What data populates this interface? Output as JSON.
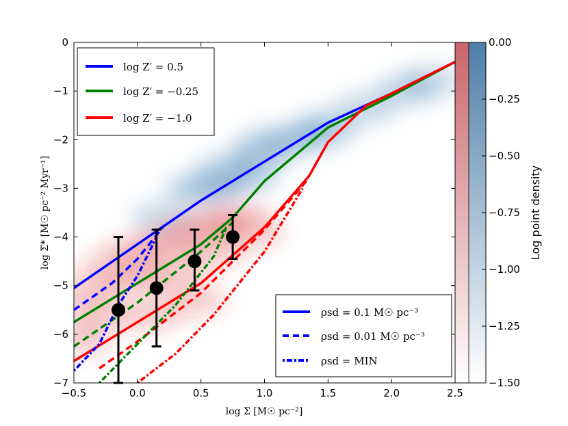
{
  "chart_data": {
    "type": "line",
    "xlabel": "log Σ [M☉ pc⁻²]",
    "ylabel": "log Σ̇* [M☉ pc⁻² Myr⁻¹]",
    "xlim": [
      -0.5,
      2.5
    ],
    "ylim": [
      -7,
      0
    ],
    "x_ticks": [
      -0.5,
      0.0,
      0.5,
      1.0,
      1.5,
      2.0,
      2.5
    ],
    "x_tick_labels": [
      "−0.5",
      "0.0",
      "0.5",
      "1.0",
      "1.5",
      "2.0",
      "2.5"
    ],
    "y_ticks": [
      0,
      -1,
      -2,
      -3,
      -4,
      -5,
      -6,
      -7
    ],
    "y_tick_labels": [
      "0",
      "−1",
      "−2",
      "−3",
      "−4",
      "−5",
      "−6",
      "−7"
    ],
    "colors": {
      "blue": "#0000ff",
      "green": "#008000",
      "red": "#ff0000",
      "density_blue": "#4682b4",
      "density_red": "#d62728"
    },
    "metallicity_legend": [
      {
        "label": "log Z′ = 0.5",
        "color_key": "blue"
      },
      {
        "label": "log Z′ = −0.25",
        "color_key": "green"
      },
      {
        "label": "log Z′ = −1.0",
        "color_key": "red"
      }
    ],
    "density_legend": [
      {
        "label": "ρsd = 0.1 M☉ pc⁻³",
        "style": "solid"
      },
      {
        "label": "ρsd = 0.01 M☉ pc⁻³",
        "style": "dashed"
      },
      {
        "label": "ρsd = MIN",
        "style": "dotted"
      }
    ],
    "series": [
      {
        "name": "logZ=0.5, rho=0.1",
        "color_key": "blue",
        "style": "solid",
        "x": [
          -0.5,
          0.0,
          0.5,
          1.0,
          1.5,
          2.0,
          2.5
        ],
        "y": [
          -5.05,
          -4.15,
          -3.25,
          -2.45,
          -1.65,
          -1.05,
          -0.4
        ]
      },
      {
        "name": "logZ=-0.25, rho=0.1",
        "color_key": "green",
        "style": "solid",
        "x": [
          -0.5,
          0.0,
          0.5,
          0.75,
          1.0,
          1.5,
          2.0,
          2.5
        ],
        "y": [
          -5.75,
          -4.95,
          -4.15,
          -3.6,
          -2.85,
          -1.75,
          -1.1,
          -0.4
        ]
      },
      {
        "name": "logZ=-1.0, rho=0.1",
        "color_key": "red",
        "style": "solid",
        "x": [
          -0.5,
          0.0,
          0.5,
          1.0,
          1.35,
          1.5,
          1.8,
          2.0,
          2.5
        ],
        "y": [
          -6.55,
          -5.75,
          -4.95,
          -3.8,
          -2.75,
          -2.05,
          -1.3,
          -1.05,
          -0.4
        ]
      },
      {
        "name": "logZ=0.5, rho=0.01",
        "color_key": "blue",
        "style": "dashed",
        "x": [
          -0.5,
          -0.2,
          0.0,
          0.2
        ],
        "y": [
          -5.5,
          -4.95,
          -4.45,
          -3.8
        ]
      },
      {
        "name": "logZ=-0.25, rho=0.01",
        "color_key": "green",
        "style": "dashed",
        "x": [
          -0.5,
          0.0,
          0.5,
          0.75
        ],
        "y": [
          -6.25,
          -5.35,
          -4.3,
          -3.7
        ]
      },
      {
        "name": "logZ=-1.0, rho=0.01",
        "color_key": "red",
        "style": "dashed",
        "x": [
          -0.3,
          0.0,
          0.5,
          1.0,
          1.33
        ],
        "y": [
          -6.7,
          -6.15,
          -5.15,
          -3.85,
          -2.85
        ]
      },
      {
        "name": "logZ=0.5, rho=min",
        "color_key": "blue",
        "style": "dotted",
        "x": [
          -0.5,
          -0.3,
          -0.15,
          0.0,
          0.15
        ],
        "y": [
          -6.75,
          -6.2,
          -5.4,
          -4.8,
          -4.0
        ]
      },
      {
        "name": "logZ=-0.25, rho=min",
        "color_key": "green",
        "style": "dotted",
        "x": [
          -0.3,
          0.0,
          0.3,
          0.6,
          0.7
        ],
        "y": [
          -7.0,
          -6.2,
          -5.4,
          -4.4,
          -3.8
        ]
      },
      {
        "name": "logZ=-1.0, rho=min",
        "color_key": "red",
        "style": "dotted",
        "x": [
          0.0,
          0.3,
          0.6,
          1.0,
          1.3
        ],
        "y": [
          -7.0,
          -6.4,
          -5.6,
          -4.3,
          -3.0
        ]
      }
    ],
    "observations": {
      "x": [
        -0.15,
        0.15,
        0.45,
        0.75
      ],
      "y": [
        -5.5,
        -5.05,
        -4.5,
        -4.0
      ],
      "y_low": [
        -7.0,
        -6.25,
        -5.1,
        -4.45
      ],
      "y_high": [
        -4.0,
        -3.85,
        -3.85,
        -3.55
      ]
    },
    "density_regions": [
      {
        "name": "blue cloud",
        "color_key": "density_blue",
        "points": [
          [
            0.2,
            -3.6
          ],
          [
            0.45,
            -3.0
          ],
          [
            0.7,
            -2.6
          ],
          [
            0.95,
            -2.4
          ],
          [
            1.2,
            -2.0
          ],
          [
            1.5,
            -1.7
          ],
          [
            1.8,
            -1.35
          ],
          [
            2.1,
            -1.0
          ],
          [
            2.3,
            -0.8
          ],
          [
            0.6,
            -3.0
          ],
          [
            1.0,
            -2.1
          ],
          [
            1.4,
            -1.9
          ],
          [
            0.85,
            -2.8
          ]
        ]
      },
      {
        "name": "red cloud",
        "color_key": "density_red",
        "points": [
          [
            -0.4,
            -5.1
          ],
          [
            -0.2,
            -4.6
          ],
          [
            0.0,
            -4.3
          ],
          [
            0.2,
            -4.1
          ],
          [
            0.4,
            -3.9
          ],
          [
            0.6,
            -3.7
          ],
          [
            0.8,
            -3.6
          ],
          [
            -0.3,
            -5.6
          ],
          [
            0.0,
            -4.9
          ],
          [
            0.3,
            -4.7
          ],
          [
            0.6,
            -4.3
          ],
          [
            0.9,
            -3.9
          ],
          [
            -0.45,
            -6.1
          ],
          [
            0.1,
            -5.6
          ],
          [
            0.45,
            -5.3
          ]
        ]
      }
    ],
    "colorbar": {
      "label": "Log point density",
      "ticks": [
        0.0,
        -0.25,
        -0.5,
        -0.75,
        -1.0,
        -1.25,
        -1.5
      ],
      "tick_labels": [
        "0.00",
        "−0.25",
        "−0.50",
        "−0.75",
        "−1.00",
        "−1.25",
        "−1.50"
      ],
      "range": [
        -1.5,
        0.0
      ]
    }
  }
}
